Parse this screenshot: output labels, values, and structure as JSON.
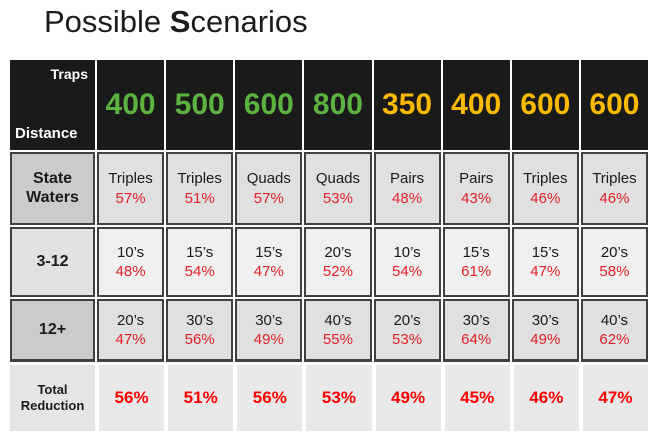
{
  "title": {
    "part1": "Possible ",
    "part2_bold": "S",
    "part3": "cenarios"
  },
  "colors": {
    "header_bg": "#1a1a1a",
    "green": "#5CB340",
    "gold": "#FBB900",
    "red": "#E22128",
    "total_red": "#FF0000"
  },
  "table": {
    "corner": {
      "top_right": "Traps",
      "bottom_left": "Distance"
    },
    "columns": [
      {
        "traps": "400",
        "color_group": "green"
      },
      {
        "traps": "500",
        "color_group": "green"
      },
      {
        "traps": "600",
        "color_group": "green"
      },
      {
        "traps": "800",
        "color_group": "green"
      },
      {
        "traps": "350",
        "color_group": "gold"
      },
      {
        "traps": "400",
        "color_group": "gold"
      },
      {
        "traps": "600",
        "color_group": "gold"
      },
      {
        "traps": "600",
        "color_group": "gold"
      }
    ],
    "rows": [
      {
        "label": "State Waters",
        "cells": [
          {
            "config": "Triples",
            "pct": "57%"
          },
          {
            "config": "Triples",
            "pct": "51%"
          },
          {
            "config": "Quads",
            "pct": "57%"
          },
          {
            "config": "Quads",
            "pct": "53%"
          },
          {
            "config": "Pairs",
            "pct": "48%"
          },
          {
            "config": "Pairs",
            "pct": "43%"
          },
          {
            "config": "Triples",
            "pct": "46%"
          },
          {
            "config": "Triples",
            "pct": "46%"
          }
        ]
      },
      {
        "label": "3-12",
        "cells": [
          {
            "config": "10’s",
            "pct": "48%"
          },
          {
            "config": "15’s",
            "pct": "54%"
          },
          {
            "config": "15’s",
            "pct": "47%"
          },
          {
            "config": "20’s",
            "pct": "52%"
          },
          {
            "config": "10’s",
            "pct": "54%"
          },
          {
            "config": "15’s",
            "pct": "61%"
          },
          {
            "config": "15’s",
            "pct": "47%"
          },
          {
            "config": "20’s",
            "pct": "58%"
          }
        ]
      },
      {
        "label": "12+",
        "cells": [
          {
            "config": "20’s",
            "pct": "47%"
          },
          {
            "config": "30’s",
            "pct": "56%"
          },
          {
            "config": "30’s",
            "pct": "49%"
          },
          {
            "config": "40’s",
            "pct": "55%"
          },
          {
            "config": "20’s",
            "pct": "53%"
          },
          {
            "config": "30’s",
            "pct": "64%"
          },
          {
            "config": "30’s",
            "pct": "49%"
          },
          {
            "config": "40’s",
            "pct": "62%"
          }
        ]
      }
    ],
    "total_row": {
      "label": "Total Reduction",
      "values": [
        "56%",
        "51%",
        "56%",
        "53%",
        "49%",
        "45%",
        "46%",
        "47%"
      ]
    }
  }
}
